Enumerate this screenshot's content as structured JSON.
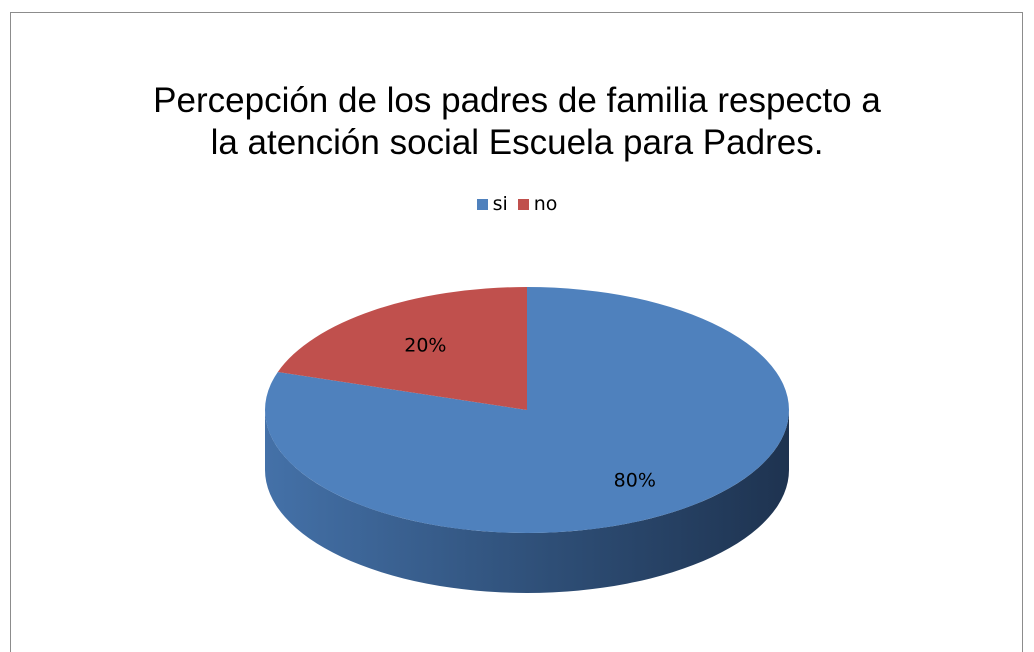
{
  "chart_data": {
    "type": "pie",
    "title_lines": [
      "Percepción de los padres de familia respecto a",
      "la atención social Escuela para Padres."
    ],
    "legend_position": "top",
    "slices": [
      {
        "name": "si",
        "value": 80,
        "label": "80%",
        "color": "#4F81BD"
      },
      {
        "name": "no",
        "value": 20,
        "label": "20%",
        "color": "#C0504D"
      }
    ]
  }
}
